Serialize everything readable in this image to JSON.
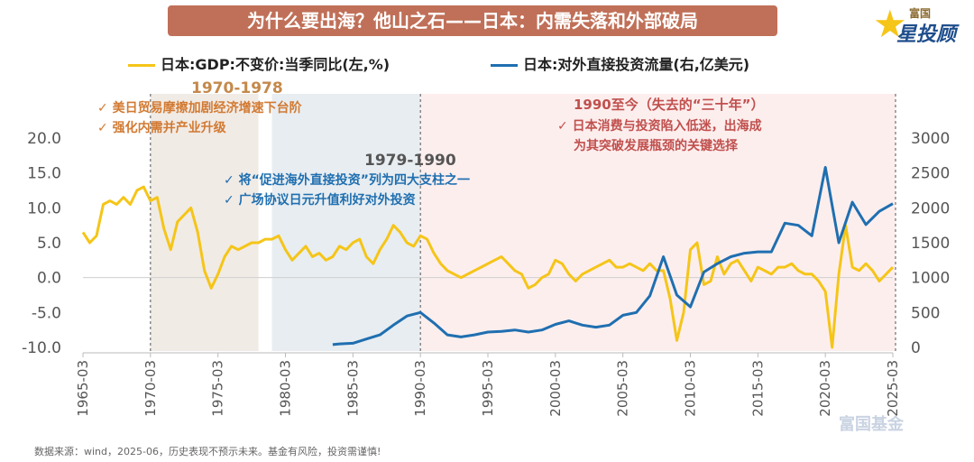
{
  "title": "为什么要出海？他山之石——日本：内需失落和外部破局",
  "logo": {
    "top": "富国",
    "main": "星投顾",
    "watermark": "富国基金"
  },
  "source": "数据来源：wind，2025-06，历史表现不预示未来。基金有风险，投资需谨慎!",
  "legend": {
    "gdp": "日本:GDP:不变价:当季同比(左,%)",
    "fdi": "日本:对外直接投资流量(右,亿美元)"
  },
  "colors": {
    "gdp": "#f5c518",
    "fdi": "#1f6fb0",
    "shade1": "#f1ebe6",
    "shade2": "#e8edf1",
    "shade3": "#fdeeee"
  },
  "annotations": {
    "p1": {
      "label": "1970-1978",
      "b1": "美日贸易摩擦加剧经济增速下台阶",
      "b2": "强化内需并产业升级"
    },
    "p2": {
      "label": "1979-1990",
      "b1": "将“促进海外直接投资”列为四大支柱之一",
      "b2": "广场协议日元升值利好对外投资"
    },
    "p3": {
      "label": "1990至今（失去的“三十年”）",
      "b1": "日本消费与投资陷入低迷，出海成",
      "b2": "为其突破发展瓶颈的关键选择"
    }
  },
  "chart_data": {
    "type": "line",
    "x_ticks": [
      "1965-03",
      "1970-03",
      "1975-03",
      "1980-03",
      "1985-03",
      "1990-03",
      "1995-03",
      "2000-03",
      "2005-03",
      "2010-03",
      "2015-03",
      "2020-03",
      "2025-03"
    ],
    "x_range": [
      1965.0,
      2025.0
    ],
    "left_axis": {
      "ticks": [
        "20.0",
        "15.0",
        "10.0",
        "5.0",
        "0.0",
        "-5.0",
        "-10.0"
      ],
      "range": [
        -10,
        20
      ]
    },
    "right_axis": {
      "ticks": [
        "3000",
        "2500",
        "2000",
        "1500",
        "1000",
        "500",
        "0"
      ],
      "range": [
        0,
        3000
      ]
    },
    "shaded_periods": [
      [
        1970.0,
        1978.0
      ],
      [
        1979.0,
        1990.0
      ],
      [
        1990.0,
        2025.2
      ]
    ],
    "series": [
      {
        "name": "日本:GDP:不变价:当季同比(左,%)",
        "axis": "left",
        "x": [
          1965.0,
          1965.5,
          1966.0,
          1966.5,
          1967.0,
          1967.5,
          1968.0,
          1968.5,
          1969.0,
          1969.5,
          1970.0,
          1970.5,
          1971.0,
          1971.5,
          1972.0,
          1972.5,
          1973.0,
          1973.5,
          1974.0,
          1974.5,
          1975.0,
          1975.5,
          1976.0,
          1976.5,
          1977.0,
          1977.5,
          1978.0,
          1978.5,
          1979.0,
          1979.5,
          1980.0,
          1980.5,
          1981.0,
          1981.5,
          1982.0,
          1982.5,
          1983.0,
          1983.5,
          1984.0,
          1984.5,
          1985.0,
          1985.5,
          1986.0,
          1986.5,
          1987.0,
          1987.5,
          1988.0,
          1988.5,
          1989.0,
          1989.5,
          1990.0,
          1990.5,
          1991.0,
          1991.5,
          1992.0,
          1992.5,
          1993.0,
          1993.5,
          1994.0,
          1994.5,
          1995.0,
          1995.5,
          1996.0,
          1996.5,
          1997.0,
          1997.5,
          1998.0,
          1998.5,
          1999.0,
          1999.5,
          2000.0,
          2000.5,
          2001.0,
          2001.5,
          2002.0,
          2002.5,
          2003.0,
          2003.5,
          2004.0,
          2004.5,
          2005.0,
          2005.5,
          2006.0,
          2006.5,
          2007.0,
          2007.5,
          2008.0,
          2008.5,
          2009.0,
          2009.5,
          2010.0,
          2010.5,
          2011.0,
          2011.5,
          2012.0,
          2012.5,
          2013.0,
          2013.5,
          2014.0,
          2014.5,
          2015.0,
          2015.5,
          2016.0,
          2016.5,
          2017.0,
          2017.5,
          2018.0,
          2018.5,
          2019.0,
          2019.5,
          2020.0,
          2020.5,
          2021.0,
          2021.5,
          2022.0,
          2022.5,
          2023.0,
          2023.5,
          2024.0,
          2024.5,
          2025.0
        ],
        "values": [
          6.5,
          5.0,
          6.0,
          10.5,
          11.0,
          10.5,
          11.5,
          10.5,
          12.5,
          13.0,
          11.0,
          11.5,
          7.0,
          4.0,
          8.0,
          9.0,
          10.0,
          6.5,
          1.0,
          -1.5,
          0.5,
          3.0,
          4.5,
          4.0,
          4.5,
          5.0,
          5.0,
          5.5,
          5.5,
          6.0,
          4.0,
          2.5,
          3.5,
          4.5,
          3.0,
          3.5,
          2.5,
          3.0,
          4.5,
          4.0,
          5.0,
          5.5,
          3.0,
          2.0,
          4.0,
          5.5,
          7.5,
          6.5,
          5.0,
          4.5,
          6.0,
          5.5,
          3.5,
          2.0,
          1.0,
          0.5,
          0.0,
          0.5,
          1.0,
          1.5,
          2.0,
          2.5,
          3.0,
          2.0,
          1.0,
          0.5,
          -1.5,
          -1.0,
          0.0,
          0.5,
          2.5,
          2.0,
          0.5,
          -0.5,
          0.5,
          1.0,
          1.5,
          2.0,
          2.5,
          1.5,
          1.5,
          2.0,
          1.5,
          1.0,
          2.0,
          1.0,
          1.0,
          -3.0,
          -9.0,
          -5.0,
          4.0,
          5.0,
          -1.0,
          -0.5,
          3.0,
          0.5,
          2.0,
          2.5,
          1.0,
          -0.5,
          1.5,
          1.0,
          0.5,
          1.5,
          1.5,
          2.0,
          1.0,
          0.5,
          0.5,
          -0.5,
          -2.0,
          -10.0,
          0.5,
          7.5,
          1.5,
          1.0,
          2.0,
          1.0,
          -0.5,
          0.5,
          1.5
        ]
      },
      {
        "name": "日本:对外直接投资流量(右,亿美元)",
        "axis": "right",
        "x": [
          1983.5,
          1984.0,
          1985.0,
          1986.0,
          1987.0,
          1988.0,
          1989.0,
          1990.0,
          1991.0,
          1992.0,
          1993.0,
          1994.0,
          1995.0,
          1996.0,
          1997.0,
          1998.0,
          1999.0,
          2000.0,
          2001.0,
          2002.0,
          2003.0,
          2004.0,
          2005.0,
          2006.0,
          2007.0,
          2008.0,
          2009.0,
          2010.0,
          2011.0,
          2012.0,
          2013.0,
          2014.0,
          2015.0,
          2016.0,
          2017.0,
          2018.0,
          2019.0,
          2020.0,
          2021.0,
          2022.0,
          2023.0,
          2024.0,
          2025.0
        ],
        "values": [
          40,
          50,
          60,
          120,
          180,
          320,
          450,
          500,
          350,
          180,
          150,
          180,
          220,
          230,
          250,
          220,
          250,
          330,
          380,
          320,
          290,
          320,
          460,
          500,
          740,
          1300,
          750,
          580,
          1080,
          1200,
          1300,
          1350,
          1370,
          1370,
          1780,
          1750,
          1600,
          2580,
          1500,
          2080,
          1760,
          1950,
          2060
        ]
      }
    ]
  }
}
